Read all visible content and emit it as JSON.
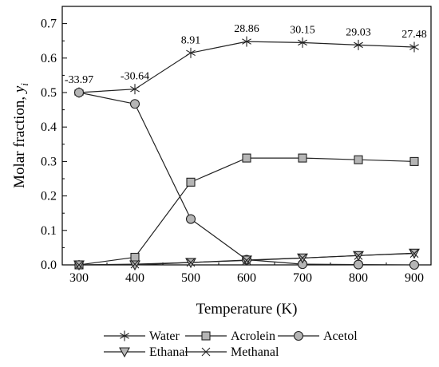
{
  "chart_data": {
    "type": "line",
    "xlabel": "Temperature (K)",
    "ylabel_main": "Molar fraction, ",
    "ylabel_sym": "y",
    "ylabel_sub": "i",
    "xlim": [
      270,
      930
    ],
    "ylim": [
      0,
      0.75
    ],
    "x_ticks": [
      "300",
      "400",
      "500",
      "600",
      "700",
      "800",
      "900"
    ],
    "y_ticks": [
      "0.0",
      "0.1",
      "0.2",
      "0.3",
      "0.4",
      "0.5",
      "0.6",
      "0.7"
    ],
    "x": [
      300,
      400,
      500,
      600,
      700,
      800,
      900
    ],
    "series": [
      {
        "name": "Water",
        "marker": "asterisk",
        "values": [
          0.5,
          0.51,
          0.615,
          0.648,
          0.645,
          0.638,
          0.632
        ]
      },
      {
        "name": "Acrolein",
        "marker": "square",
        "values": [
          0.0,
          0.022,
          0.24,
          0.31,
          0.31,
          0.305,
          0.3
        ]
      },
      {
        "name": "Acetol",
        "marker": "circle",
        "values": [
          0.5,
          0.467,
          0.133,
          0.015,
          0.002,
          0.001,
          0.0
        ]
      },
      {
        "name": "Ethanal",
        "marker": "triangle-down",
        "values": [
          0.0,
          0.0,
          0.007,
          0.014,
          0.02,
          0.027,
          0.034
        ]
      },
      {
        "name": "Methanal",
        "marker": "x",
        "values": [
          0.0,
          0.002,
          0.007,
          0.013,
          0.02,
          0.027,
          0.033
        ]
      }
    ],
    "annotations": [
      {
        "text": "-33.97",
        "x": 300,
        "y": 0.5
      },
      {
        "text": "-30.64",
        "x": 400,
        "y": 0.51
      },
      {
        "text": "8.91",
        "x": 500,
        "y": 0.615
      },
      {
        "text": "28.86",
        "x": 600,
        "y": 0.648
      },
      {
        "text": "30.15",
        "x": 700,
        "y": 0.645
      },
      {
        "text": "29.03",
        "x": 800,
        "y": 0.638
      },
      {
        "text": "27.48",
        "x": 900,
        "y": 0.632
      }
    ],
    "grid": false,
    "legend_position": "bottom"
  }
}
